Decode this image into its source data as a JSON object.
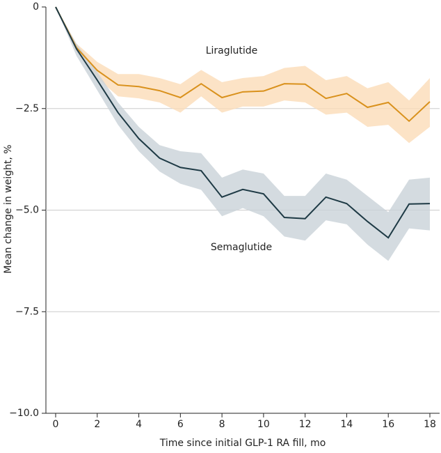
{
  "chart_data": {
    "type": "line",
    "x_label": "Time since initial GLP-1 RA fill, mo",
    "y_label": "Mean change in weight, %",
    "x": [
      0,
      1,
      2,
      3,
      4,
      5,
      6,
      7,
      8,
      9,
      10,
      11,
      12,
      13,
      14,
      15,
      16,
      17,
      18
    ],
    "xlim": [
      0,
      18
    ],
    "xticks": [
      0,
      2,
      4,
      6,
      8,
      10,
      12,
      14,
      16,
      18
    ],
    "ylim": [
      -10,
      0
    ],
    "yticks": [
      {
        "value": -10,
        "label": "−10.0"
      },
      {
        "value": -7.5,
        "label": "−7.5"
      },
      {
        "value": -5,
        "label": "−5.0"
      },
      {
        "value": -2.5,
        "label": "−2.5"
      },
      0
    ],
    "grid": true,
    "series": [
      {
        "name": "Liraglutide",
        "color": "#d9911c",
        "band_color": "#fbdcb8",
        "values": [
          0,
          -1.0,
          -1.56,
          -1.92,
          -1.96,
          -2.06,
          -2.23,
          -1.89,
          -2.23,
          -2.09,
          -2.07,
          -1.89,
          -1.9,
          -2.25,
          -2.13,
          -2.47,
          -2.35,
          -2.81,
          -2.33
        ],
        "upper": [
          0,
          -0.9,
          -1.35,
          -1.65,
          -1.65,
          -1.75,
          -1.9,
          -1.55,
          -1.85,
          -1.75,
          -1.7,
          -1.5,
          -1.45,
          -1.8,
          -1.7,
          -2.0,
          -1.85,
          -2.3,
          -1.75
        ],
        "lower": [
          0,
          -1.1,
          -1.75,
          -2.2,
          -2.25,
          -2.35,
          -2.6,
          -2.2,
          -2.6,
          -2.45,
          -2.45,
          -2.3,
          -2.35,
          -2.65,
          -2.6,
          -2.95,
          -2.9,
          -3.35,
          -2.95
        ]
      },
      {
        "name": "Semaglutide",
        "color": "#1e3a45",
        "band_color": "#c9d2d8",
        "values": [
          0,
          -1.03,
          -1.8,
          -2.6,
          -3.24,
          -3.72,
          -3.95,
          -4.03,
          -4.68,
          -4.49,
          -4.6,
          -5.18,
          -5.21,
          -4.68,
          -4.84,
          -5.28,
          -5.68,
          -4.85,
          -4.84
        ],
        "upper": [
          0,
          -0.9,
          -1.6,
          -2.35,
          -2.95,
          -3.4,
          -3.55,
          -3.6,
          -4.2,
          -4.0,
          -4.1,
          -4.65,
          -4.65,
          -4.1,
          -4.25,
          -4.65,
          -5.05,
          -4.25,
          -4.2
        ],
        "lower": [
          0,
          -1.2,
          -2.05,
          -2.9,
          -3.55,
          -4.05,
          -4.35,
          -4.5,
          -5.15,
          -4.95,
          -5.15,
          -5.65,
          -5.75,
          -5.25,
          -5.35,
          -5.85,
          -6.25,
          -5.45,
          -5.5
        ]
      }
    ]
  }
}
